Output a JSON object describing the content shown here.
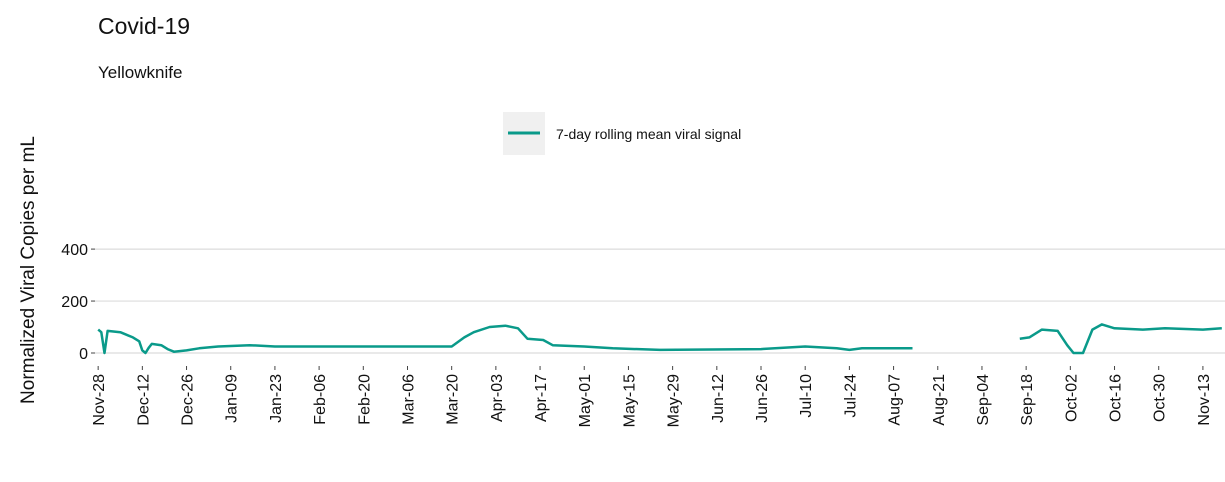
{
  "chart_data": {
    "type": "line",
    "title": "Covid-19",
    "subtitle": "Yellowknife",
    "y_label": "Normalized Viral Copies per mL",
    "x": [
      "Nov-28",
      "Nov-29",
      "Nov-30",
      "Dec-01",
      "Dec-05",
      "Dec-09",
      "Dec-11",
      "Dec-12",
      "Dec-13",
      "Dec-14",
      "Dec-15",
      "Dec-18",
      "Dec-20",
      "Dec-22",
      "Dec-26",
      "Dec-30",
      "Jan-05",
      "Jan-15",
      "Jan-23",
      "Feb-20",
      "Mar-20",
      "Mar-24",
      "Mar-27",
      "Apr-01",
      "Apr-06",
      "Apr-10",
      "Apr-13",
      "Apr-18",
      "Apr-21",
      "May-01",
      "May-10",
      "May-25",
      "Jun-26",
      "Jul-10",
      "Jul-20",
      "Jul-24",
      "Jul-28",
      "Aug-13",
      "Aug-28",
      "Sep-16",
      "Sep-19",
      "Sep-23",
      "Sep-28",
      "Oct-01",
      "Oct-03",
      "Oct-06",
      "Oct-09",
      "Oct-12",
      "Oct-16",
      "Oct-25",
      "Nov-01",
      "Nov-13",
      "Nov-19"
    ],
    "series": [
      {
        "name": "7-day rolling mean viral signal",
        "color": "#0a9a8a",
        "values": [
          90,
          80,
          0,
          85,
          80,
          60,
          45,
          10,
          0,
          20,
          35,
          30,
          15,
          5,
          10,
          18,
          25,
          30,
          25,
          25,
          25,
          60,
          80,
          100,
          105,
          95,
          55,
          50,
          30,
          25,
          18,
          12,
          15,
          25,
          18,
          12,
          18,
          18,
          null,
          55,
          60,
          90,
          85,
          30,
          0,
          0,
          90,
          110,
          95,
          90,
          95,
          90,
          95
        ]
      }
    ],
    "xlim": [
      "Nov-27",
      "Nov-20"
    ],
    "xticks": [
      "Nov-28",
      "Dec-12",
      "Dec-26",
      "Jan-09",
      "Jan-23",
      "Feb-06",
      "Feb-20",
      "Mar-06",
      "Mar-20",
      "Apr-03",
      "Apr-17",
      "May-01",
      "May-15",
      "May-29",
      "Jun-12",
      "Jun-26",
      "Jul-10",
      "Jul-24",
      "Aug-07",
      "Aug-21",
      "Sep-04",
      "Sep-18",
      "Oct-02",
      "Oct-16",
      "Oct-30",
      "Nov-13"
    ],
    "ylim": [
      -50,
      435
    ],
    "yticks": [
      0,
      200,
      400
    ],
    "grid": true,
    "legend": "top"
  }
}
